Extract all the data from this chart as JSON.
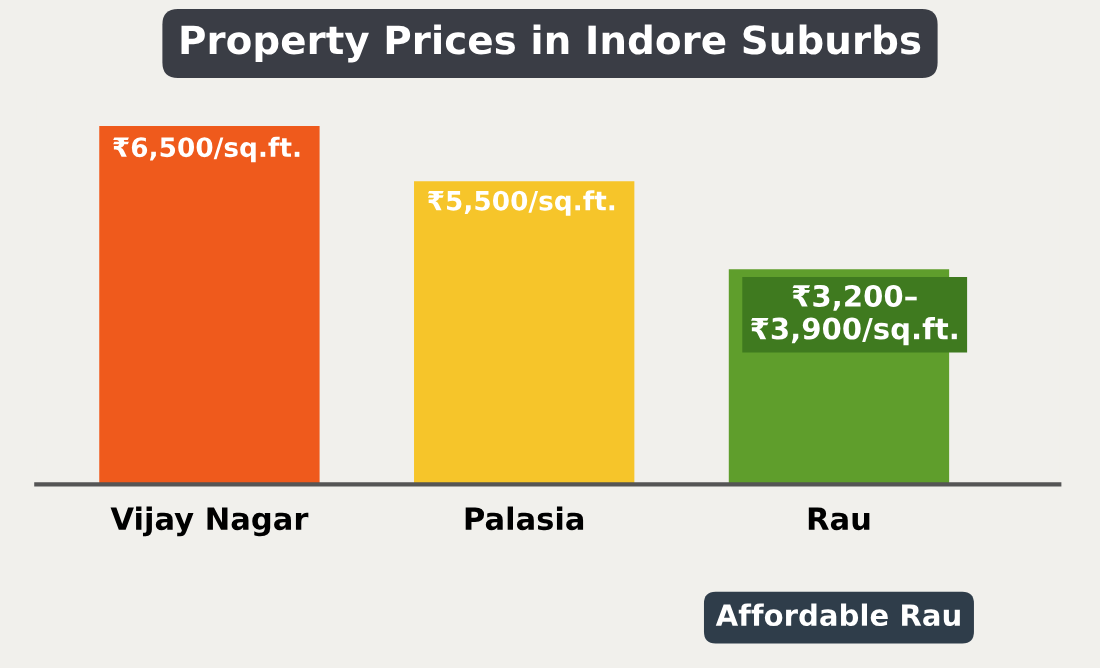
{
  "chart_data": {
    "type": "bar",
    "title": "Property Prices in Indore Suburbs",
    "categories": [
      "Vijay Nagar",
      "Palasia",
      "Rau"
    ],
    "values": [
      6500,
      5500,
      3900
    ],
    "colors": [
      "#ef5a1c",
      "#f6c52a",
      "#5f9e2c"
    ],
    "value_labels": [
      "₹6,500/sq.ft.",
      "₹5,500/sq.ft.",
      "₹3,200–\n₹3,900/sq.ft."
    ],
    "grid": false,
    "legend": false,
    "annotations": [
      "Affordable Rau"
    ]
  }
}
